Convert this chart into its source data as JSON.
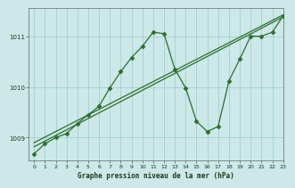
{
  "xlabel": "Graphe pression niveau de la mer (hPa)",
  "bg_color": "#cce8e8",
  "grid_color": "#99cccc",
  "line_color": "#2d6e2d",
  "xlim": [
    -0.5,
    23
  ],
  "ylim": [
    1008.55,
    1011.55
  ],
  "yticks": [
    1009,
    1010,
    1011
  ],
  "xticks": [
    0,
    1,
    2,
    3,
    4,
    5,
    6,
    7,
    8,
    9,
    10,
    11,
    12,
    13,
    14,
    15,
    16,
    17,
    18,
    19,
    20,
    21,
    22,
    23
  ],
  "trend1_x": [
    0,
    23
  ],
  "trend1_y": [
    1008.9,
    1011.42
  ],
  "trend2_x": [
    0,
    23
  ],
  "trend2_y": [
    1008.82,
    1011.38
  ],
  "wiggly_x": [
    0,
    1,
    2,
    3,
    4,
    5,
    6,
    7,
    8,
    9,
    10,
    11,
    12,
    13,
    14,
    15,
    16,
    17,
    18,
    19,
    20,
    21,
    22,
    23
  ],
  "wiggly_y": [
    1008.68,
    1008.88,
    1009.0,
    1009.08,
    1009.28,
    1009.45,
    1009.62,
    1009.98,
    1010.3,
    1010.58,
    1010.8,
    1011.08,
    1011.05,
    1010.35,
    1009.98,
    1009.32,
    1009.12,
    1009.22,
    1010.12,
    1010.55,
    1011.0,
    1011.0,
    1011.08,
    1011.4
  ],
  "marker": "D",
  "markersize": 2.5,
  "linewidth": 0.9
}
